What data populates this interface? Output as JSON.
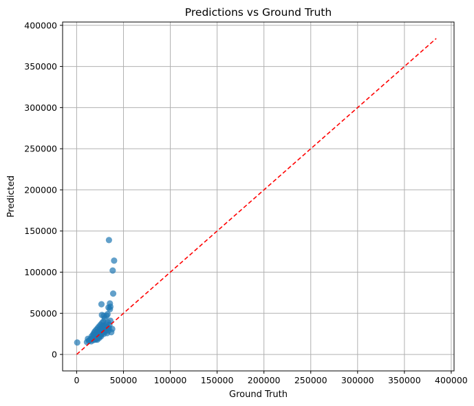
{
  "chart_data": {
    "type": "scatter",
    "title": "Predictions vs Ground Truth",
    "xlabel": "Ground Truth",
    "ylabel": "Predicted",
    "xlim": [
      -15000,
      403000
    ],
    "ylim": [
      -20000,
      404000
    ],
    "xticks": [
      0,
      50000,
      100000,
      150000,
      200000,
      250000,
      300000,
      350000,
      400000
    ],
    "yticks": [
      0,
      50000,
      100000,
      150000,
      200000,
      250000,
      300000,
      350000,
      400000
    ],
    "xtick_labels": [
      "0",
      "50000",
      "100000",
      "150000",
      "200000",
      "250000",
      "300000",
      "350000",
      "400000"
    ],
    "ytick_labels": [
      "0",
      "50000",
      "100000",
      "150000",
      "200000",
      "250000",
      "300000",
      "350000",
      "400000"
    ],
    "grid": true,
    "point_color": "#1f77b4",
    "point_alpha": 0.7,
    "reference_line": {
      "style": "dashed",
      "color": "#ff0000",
      "from": [
        0,
        0
      ],
      "to": [
        384000,
        384000
      ]
    },
    "points": [
      [
        600,
        14500
      ],
      [
        11000,
        15000
      ],
      [
        12000,
        19000
      ],
      [
        13000,
        16500
      ],
      [
        14000,
        17500
      ],
      [
        15000,
        18500
      ],
      [
        15500,
        16000
      ],
      [
        16000,
        22000
      ],
      [
        16500,
        20000
      ],
      [
        17000,
        19000
      ],
      [
        17500,
        24000
      ],
      [
        18000,
        17500
      ],
      [
        18500,
        26000
      ],
      [
        19000,
        21000
      ],
      [
        19500,
        28000
      ],
      [
        20000,
        18000
      ],
      [
        20500,
        23000
      ],
      [
        21000,
        30000
      ],
      [
        21500,
        19500
      ],
      [
        22000,
        25000
      ],
      [
        22500,
        32000
      ],
      [
        23000,
        21000
      ],
      [
        23500,
        27000
      ],
      [
        24000,
        34000
      ],
      [
        24500,
        22000
      ],
      [
        25000,
        29000
      ],
      [
        25500,
        36000
      ],
      [
        26000,
        24000
      ],
      [
        26500,
        31000
      ],
      [
        27000,
        38000
      ],
      [
        27500,
        26000
      ],
      [
        28000,
        33000
      ],
      [
        28500,
        40000
      ],
      [
        29000,
        25000
      ],
      [
        29500,
        35000
      ],
      [
        30000,
        44000
      ],
      [
        30500,
        28000
      ],
      [
        31000,
        30000
      ],
      [
        31500,
        37000
      ],
      [
        32000,
        47000
      ],
      [
        32500,
        26000
      ],
      [
        33000,
        33000
      ],
      [
        33500,
        39000
      ],
      [
        34000,
        29000
      ],
      [
        34500,
        32000
      ],
      [
        35000,
        36000
      ],
      [
        35500,
        55000
      ],
      [
        36000,
        41000
      ],
      [
        33000,
        49000
      ],
      [
        34000,
        57000
      ],
      [
        36000,
        58000
      ],
      [
        37000,
        27000
      ],
      [
        38000,
        31000
      ],
      [
        27000,
        48000
      ],
      [
        26500,
        61000
      ],
      [
        29000,
        47000
      ],
      [
        35500,
        62000
      ],
      [
        39000,
        74000
      ],
      [
        38500,
        102000
      ],
      [
        40000,
        114000
      ],
      [
        34500,
        139000
      ],
      [
        22000,
        18000
      ],
      [
        24000,
        20000
      ],
      [
        26000,
        22000
      ],
      [
        28000,
        30000
      ],
      [
        30000,
        33000
      ],
      [
        21000,
        26000
      ],
      [
        19000,
        24000
      ],
      [
        23000,
        28000
      ],
      [
        25000,
        31000
      ],
      [
        27500,
        35000
      ]
    ]
  }
}
